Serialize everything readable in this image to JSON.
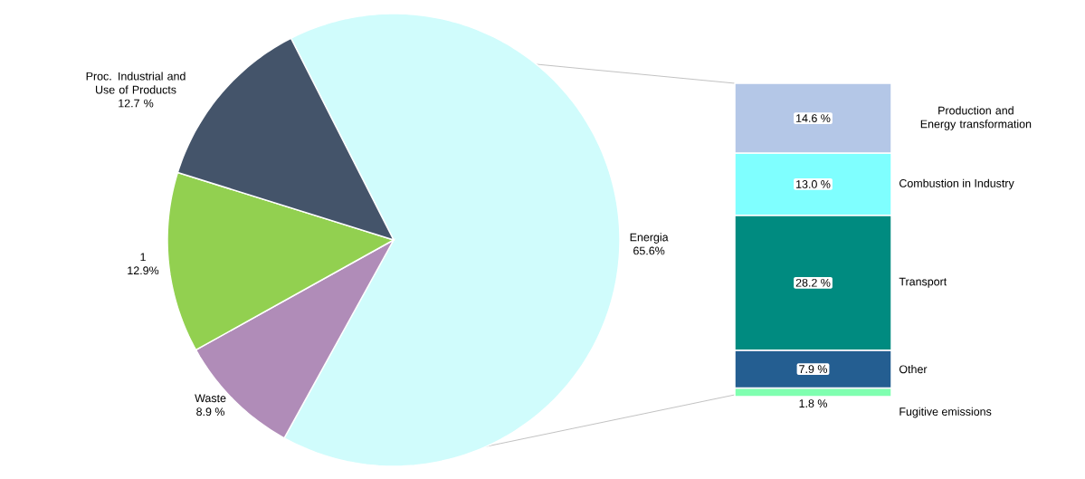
{
  "chart_data": [
    {
      "type": "pie",
      "categories": [
        "Energia",
        "Waste",
        "1",
        "Proc. Industrial and Use of Products"
      ],
      "values": [
        65.6,
        8.9,
        12.9,
        12.7
      ],
      "colors": [
        "#d0fcfc",
        "#b08cb8",
        "#92d050",
        "#44546a"
      ],
      "value_labels": [
        "65.6%",
        "8.9 %",
        "12.9%",
        "12.7 %"
      ]
    },
    {
      "type": "bar",
      "stacked": true,
      "categories": [
        null
      ],
      "series": [
        {
          "name": "Fugitive emissions",
          "color": "#7fffb0",
          "values": [
            1.8
          ],
          "value_labels": [
            "1.8 %"
          ]
        },
        {
          "name": "Other",
          "color": "#245e91",
          "values": [
            7.9
          ],
          "value_labels": [
            "7.9 %"
          ]
        },
        {
          "name": "Transport",
          "color": "#008b80",
          "values": [
            28.2
          ],
          "value_labels": [
            "28.2 %"
          ]
        },
        {
          "name": "Combustion in Industry",
          "color": "#7fffff",
          "values": [
            13.0
          ],
          "value_labels": [
            "13.0 %"
          ]
        },
        {
          "name": "Production and Energy transformation",
          "color": "#b4c7e7",
          "values": [
            14.6
          ],
          "value_labels": [
            "14.6 %"
          ]
        }
      ]
    }
  ]
}
